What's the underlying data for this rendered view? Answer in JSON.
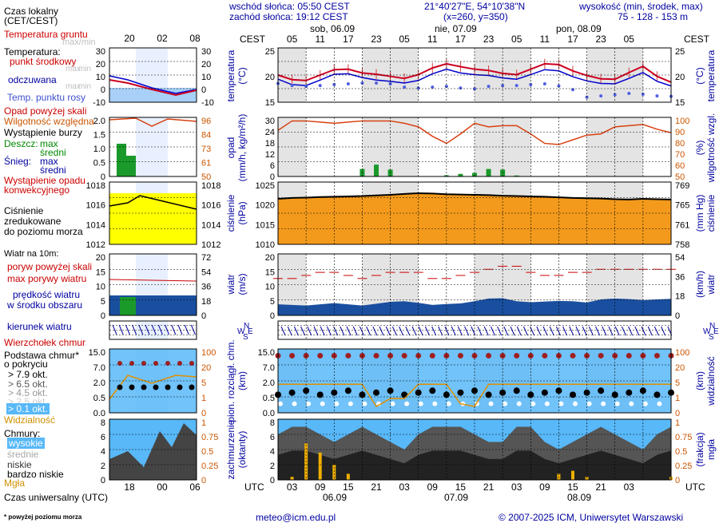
{
  "header": {
    "sunrise": "wschód słońca: 05:50 CEST",
    "sunset": "zachód słońca: 19:12 CEST",
    "coords": "21°40'27\"E, 54°10'38\"N",
    "grid": "(x=260, y=350)",
    "height_label": "wysokość (min, środek, max)",
    "height_values": "75 - 128 - 153 m"
  },
  "legend": {
    "local_time": "Czas lokalny",
    "local_time_zone": "(CET/CEST)",
    "soil_temp": "Temperatura gruntu",
    "soil_maxmin": "max/min",
    "temperature": "Temperatura:",
    "mid_point": "punkt środkowy",
    "max_min_1": "max",
    "max_min_2": "min",
    "feels_like": "odczuwana",
    "max_min_3": "max",
    "max_min_4": "min",
    "dew_point": "Temp. punktu rosy",
    "precip_above": "Opad powyżej skali",
    "humidity": "Wilgotność względna",
    "storm": "Wystąpienie burzy",
    "rain": "Deszcz:",
    "rain_max": "max",
    "rain_avg": "średni",
    "snow": "Śnieg:",
    "snow_max": "max",
    "snow_avg": "średni",
    "convective": "Wystąpienie opadu",
    "convective2": "konwekcyjnego",
    "pressure1": "Ciśnienie",
    "pressure2": "zredukowane",
    "pressure3": "do poziomu morza",
    "wind10": "Wiatr na 10m:",
    "gust_above": "poryw powyżej skali",
    "gust_max": "max porywy wiatru",
    "wind_speed": "prędkość wiatru",
    "wind_area": "w środku obszaru",
    "wind_dir": "kierunek wiatru",
    "cloud_top": "Wierzchołek chmur",
    "cloud_base1": "Podstawa chmur*",
    "cloud_base2": "o pokryciu",
    "okt1": "> 7.9 okt.",
    "okt2": "> 6.5 okt.",
    "okt3": "> 4.5 okt.",
    "okt4": "> 2.5 okt.",
    "okt5": "> 0.1 okt.",
    "visibility": "Widzialność",
    "clouds": "Chmury:",
    "high": "wysokie",
    "medium": "średnie",
    "low": "niskie",
    "very_low": "bardzo niskie",
    "fog": "Mgła",
    "utc_time": "Czas uniwersalny (UTC)",
    "footnote": "* powyżej poziomu morza",
    "mini_top_ticks": [
      "20",
      "02",
      "08"
    ],
    "mini_bottom_ticks": [
      "18",
      "00",
      "06"
    ]
  },
  "axes": {
    "cest": "CEST",
    "utc": "UTC",
    "top_days": [
      "sob, 06.09",
      "nie, 07.09",
      "pon, 08.09"
    ],
    "top_hours": [
      "05",
      "11",
      "17",
      "23",
      "05",
      "11",
      "17",
      "23",
      "05",
      "11",
      "17",
      "23",
      "05"
    ],
    "bottom_hours": [
      "03",
      "09",
      "15",
      "21",
      "03",
      "09",
      "15",
      "21",
      "03",
      "09",
      "15",
      "21",
      "03"
    ],
    "bottom_dates": [
      "06.09",
      "07.09",
      "08.09"
    ],
    "temp_label": "temperatura",
    "temp_unit": "(°C)",
    "precip_label": "opad",
    "precip_unit": "(mm/h, kg/m²/h)",
    "hum_label": "wilgotność wzgl.",
    "hum_unit": "(%)",
    "press_label": "ciśnienie",
    "press_unit": "(hPa)",
    "press_unit2": "(mm Hg)",
    "wind_label": "wiatr",
    "wind_unit": "(m/s)",
    "wind_unit2": "(km/h)",
    "cloud_label1": "pion. rozciągł. chm.",
    "cloud_label2": "(km)",
    "vis_label": "widzialność",
    "vis_unit": "(km)",
    "cov_label1": "zachmurzenie",
    "cov_label2": "(oktanty)",
    "fog_label": "mgła",
    "fog_unit": "(frakcja)",
    "compass": [
      "N",
      "W",
      "E",
      "S"
    ],
    "temp_ticks": [
      "25",
      "20",
      "15"
    ],
    "precip_ticks": [
      "30",
      "24",
      "18",
      "12",
      "6",
      "0"
    ],
    "hum_ticks": [
      "100",
      "90",
      "80",
      "70",
      "60",
      "50"
    ],
    "press_ticks": [
      "1025",
      "1020",
      "1015",
      "1010"
    ],
    "mmhg_ticks": [
      "769",
      "765",
      "761",
      "758"
    ],
    "wind_ticks": [
      "20",
      "15",
      "10",
      "5",
      "0"
    ],
    "kmh_ticks": [
      "54",
      "36",
      "18",
      "0"
    ],
    "cloud_ticks": [
      "15.0",
      "7.0",
      "2.0",
      "0.5",
      "0.0"
    ],
    "vis_ticks": [
      "100",
      "20",
      "5",
      "1",
      "0"
    ],
    "cov_ticks": [
      "8",
      "6",
      "4",
      "2",
      "0"
    ],
    "fog_ticks": [
      "1",
      "0.75",
      "0.5",
      "0.25",
      "0"
    ],
    "mini_temp_ticks": [
      "30",
      "20",
      "10",
      "0",
      "-10"
    ],
    "mini_temp_ticks_r": [
      "30",
      "20",
      "10",
      "0",
      "-10"
    ],
    "mini_precip_ticks": [
      "2.0",
      "1.5",
      "1.0",
      "0.5",
      "0"
    ],
    "mini_hum_ticks": [
      "96",
      "84",
      "73",
      "61",
      "50"
    ],
    "mini_press_ticks": [
      "1018",
      "1016",
      "1014",
      "1012"
    ],
    "mini_wind_ticks": [
      "20",
      "15",
      "10",
      "5",
      "0"
    ],
    "mini_kmh_ticks": [
      "72",
      "54",
      "36",
      "18",
      "0"
    ],
    "mini_cloud_ticks": [
      "15.0",
      "7.0",
      "2.0",
      "0.5",
      "0.0"
    ],
    "mini_vis_ticks": [
      "100",
      "20",
      "5",
      "1",
      "0"
    ],
    "mini_cov_ticks": [
      "8",
      "6",
      "4",
      "2",
      "0"
    ],
    "mini_fog_ticks": [
      "1",
      "0.75",
      "0.5",
      "0.25",
      "0"
    ]
  },
  "footer": {
    "email": "meteo@icm.edu.pl",
    "copyright": "© 2007-2025 ICM, Uniwersytet Warszawski"
  },
  "chart_data": {
    "type": "line",
    "x_hours_utc": [
      0,
      3,
      6,
      9,
      12,
      15,
      18,
      21,
      24,
      27,
      30,
      33,
      36,
      39,
      42,
      45,
      48,
      51,
      54,
      57,
      60,
      63,
      66,
      69,
      72,
      75,
      78,
      81,
      84
    ],
    "temperature_mid": [
      18.5,
      17.4,
      17.2,
      18.5,
      19.8,
      19.9,
      19.0,
      18.7,
      18.2,
      17.7,
      18.6,
      20.2,
      21.2,
      20.5,
      19.9,
      19.6,
      18.9,
      18.6,
      19.9,
      21.2,
      21.0,
      19.5,
      18.4,
      17.6,
      17.5,
      19.1,
      20.6,
      18.2,
      16.8
    ],
    "temperature_feels": [
      17.5,
      16.2,
      16.0,
      17.3,
      18.7,
      18.8,
      17.9,
      17.3,
      17.0,
      16.6,
      17.2,
      18.8,
      19.9,
      19.0,
      18.6,
      18.4,
      17.8,
      17.5,
      18.6,
      19.8,
      19.5,
      18.1,
      17.1,
      16.5,
      16.4,
      17.7,
      19.1,
      17.0,
      15.9
    ],
    "dew_point": [
      16.5,
      16.0,
      15.8,
      16.0,
      16.2,
      16.4,
      16.6,
      16.6,
      16.4,
      15.6,
      15.4,
      15.6,
      15.8,
      15.4,
      15.2,
      15.8,
      16.0,
      16.0,
      16.2,
      16.4,
      15.9,
      15.0,
      13.2,
      13.5,
      13.8,
      14.1,
      13.9,
      13.5,
      13.4
    ],
    "humidity": [
      89,
      97,
      97,
      96,
      95,
      96,
      97,
      97,
      97,
      95,
      92,
      84,
      78,
      86,
      95,
      92,
      93,
      93,
      86,
      78,
      77,
      81,
      85,
      86,
      92,
      93,
      94,
      90,
      87
    ],
    "pressure_hpa": [
      1019.6,
      1019.9,
      1020.0,
      1020.2,
      1020.3,
      1020.4,
      1020.5,
      1020.7,
      1020.9,
      1021.2,
      1021.4,
      1021.3,
      1021.1,
      1021.0,
      1020.9,
      1020.8,
      1020.6,
      1020.5,
      1020.4,
      1020.3,
      1020.1,
      1019.9,
      1019.8,
      1019.7,
      1019.5,
      1019.4,
      1019.6,
      1019.5,
      1019.4
    ],
    "wind_ms": [
      3.6,
      3.4,
      3.2,
      3.6,
      4.0,
      3.6,
      3.2,
      3.8,
      4.4,
      4.6,
      4.1,
      3.4,
      3.7,
      3.9,
      4.6,
      5.5,
      5.6,
      4.6,
      4.3,
      4.5,
      4.7,
      4.6,
      4.2,
      5.2,
      5.5,
      5.3,
      5.0,
      5.2,
      5.4
    ],
    "gust_ms": [
      12,
      12,
      13,
      14,
      14,
      13,
      12,
      13,
      14,
      14,
      14,
      12,
      12,
      13,
      14,
      15,
      16,
      16,
      14,
      13,
      13,
      14,
      14,
      15,
      15,
      15,
      15,
      15,
      15
    ],
    "precip_rain_mm": [
      0,
      0,
      0,
      0,
      0,
      0,
      3.8,
      6,
      3.5,
      0,
      0,
      0,
      0.6,
      1.3,
      1.8,
      3.8,
      3.5,
      0.5,
      0,
      0,
      0,
      0,
      0,
      0,
      0,
      0,
      0,
      0,
      0
    ],
    "visibility_km": [
      20,
      20,
      20,
      20,
      20,
      20,
      20,
      1,
      5,
      5,
      20,
      20,
      20,
      2,
      1,
      20,
      20,
      20,
      20,
      20,
      20,
      20,
      20,
      20,
      20,
      20,
      20,
      20,
      20
    ],
    "fog_fraction": [
      0,
      0.05,
      0.6,
      0.45,
      0.25,
      0.1,
      0,
      0,
      0,
      0,
      0,
      0,
      0,
      0,
      0,
      0,
      0,
      0,
      0,
      0,
      0.1,
      0.15,
      0.05,
      0,
      0,
      0,
      0,
      0,
      0.05
    ],
    "cloud_cover_oktants": [
      6,
      7,
      7,
      6,
      5,
      6,
      7,
      6,
      5,
      4,
      6,
      7,
      7,
      7,
      6,
      5,
      5,
      7,
      7,
      5,
      4,
      5,
      6,
      7,
      6,
      5,
      4,
      6,
      7
    ],
    "title": "",
    "ylim_temp": [
      12,
      25
    ],
    "ylim_precip": [
      0,
      30
    ],
    "ylim_pressure": [
      1005,
      1025
    ],
    "ylim_wind": [
      0,
      20
    ]
  }
}
